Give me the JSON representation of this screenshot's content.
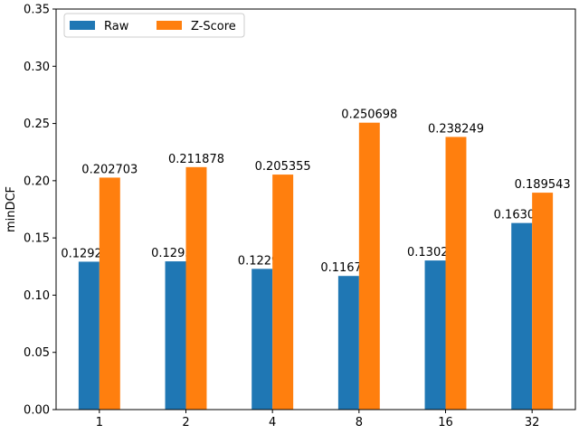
{
  "chart_data": {
    "type": "bar",
    "title": "",
    "xlabel": "",
    "ylabel": "minDCF",
    "categories": [
      "1",
      "2",
      "4",
      "8",
      "16",
      "32"
    ],
    "ylim": [
      0,
      0.35
    ],
    "yticks": [
      "0.00",
      "0.05",
      "0.10",
      "0.15",
      "0.20",
      "0.25",
      "0.30",
      "0.35"
    ],
    "yticks_values": [
      0,
      0.05,
      0.1,
      0.15,
      0.2,
      0.25,
      0.3,
      0.35
    ],
    "grid": false,
    "legend_position": "top-left",
    "series": [
      {
        "name": "Raw",
        "color": "#1f77b4",
        "values": [
          0.129226,
          0.12953,
          0.12297,
          0.116764,
          0.130279,
          0.163046
        ],
        "labels": [
          "0.129226",
          "0.12953",
          "0.12297",
          "0.116764",
          "0.130279",
          "0.163046"
        ]
      },
      {
        "name": "Z-Score",
        "color": "#ff7f0e",
        "values": [
          0.202703,
          0.211878,
          0.205355,
          0.250698,
          0.238249,
          0.189543
        ],
        "labels": [
          "0.202703",
          "0.211878",
          "0.205355",
          "0.250698",
          "0.238249",
          "0.189543"
        ]
      }
    ]
  }
}
